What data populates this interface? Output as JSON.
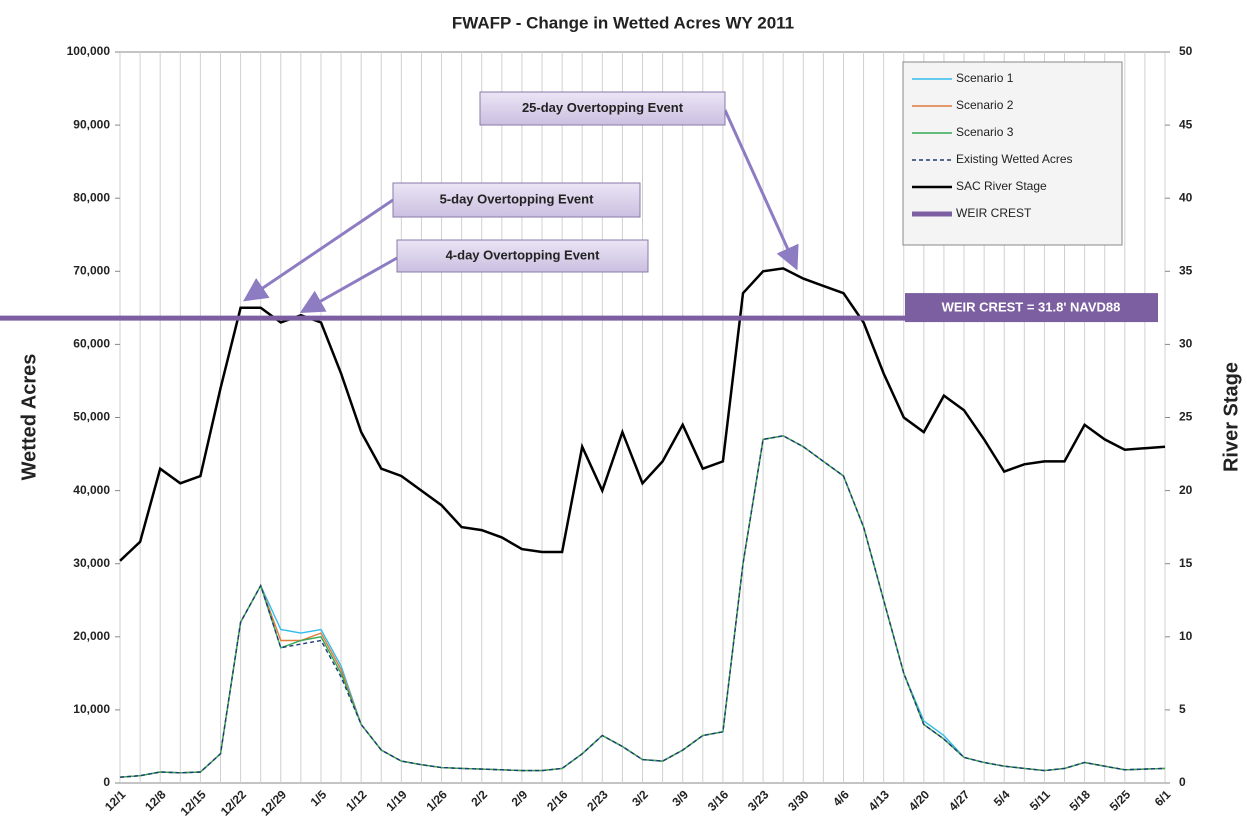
{
  "chart_data": {
    "type": "line",
    "title": "FWAFP - Change in Wetted Acres WY 2011",
    "y_label": "Wetted Acres",
    "y2_label": "River Stage",
    "categories": [
      "12/1",
      null,
      "12/8",
      null,
      "12/15",
      null,
      "12/22",
      null,
      "12/29",
      null,
      "1/5",
      null,
      "1/12",
      null,
      "1/19",
      null,
      "1/26",
      null,
      "2/2",
      null,
      "2/9",
      null,
      "2/16",
      null,
      "2/23",
      null,
      "3/2",
      null,
      "3/9",
      null,
      "3/16",
      null,
      "3/23",
      null,
      "3/30",
      null,
      "4/6",
      null,
      "4/13",
      null,
      "4/20",
      null,
      "4/27",
      null,
      "5/4",
      null,
      "5/11",
      null,
      "5/18",
      null,
      "5/25",
      null,
      "6/1"
    ],
    "series": [
      {
        "name": "Scenario 1",
        "color": "#33bbee",
        "values": [
          800,
          1000,
          1500,
          1400,
          1500,
          4000,
          22000,
          27000,
          21000,
          20500,
          21000,
          16000,
          8000,
          4500,
          3000,
          2500,
          2100,
          2000,
          1900,
          1800,
          1700,
          1700,
          2000,
          4000,
          6500,
          5000,
          3200,
          3000,
          4500,
          6500,
          7000,
          30000,
          47000,
          47500,
          46000,
          44000,
          42000,
          35000,
          25000,
          15000,
          8500,
          6500,
          3500,
          2800,
          2300,
          2000,
          1700,
          2000,
          2800,
          2300,
          1800,
          1900,
          2000
        ]
      },
      {
        "name": "Scenario 2",
        "color": "#e07b39",
        "values": [
          800,
          1000,
          1500,
          1400,
          1500,
          4000,
          22000,
          27000,
          19500,
          19500,
          20500,
          15500,
          8000,
          4500,
          3000,
          2500,
          2100,
          2000,
          1900,
          1800,
          1700,
          1700,
          2000,
          4000,
          6500,
          5000,
          3200,
          3000,
          4500,
          6500,
          7000,
          30000,
          47000,
          47500,
          46000,
          44000,
          42000,
          35000,
          25000,
          15000,
          8000,
          6000,
          3500,
          2800,
          2300,
          2000,
          1700,
          2000,
          2800,
          2300,
          1800,
          1900,
          2000
        ]
      },
      {
        "name": "Scenario 3",
        "color": "#33aa55",
        "values": [
          800,
          1000,
          1500,
          1400,
          1500,
          4000,
          22000,
          27000,
          18500,
          19500,
          20000,
          15000,
          8000,
          4500,
          3000,
          2500,
          2100,
          2000,
          1900,
          1800,
          1700,
          1700,
          2000,
          4000,
          6500,
          5000,
          3200,
          3000,
          4500,
          6500,
          7000,
          30000,
          47000,
          47500,
          46000,
          44000,
          42000,
          35000,
          25000,
          15000,
          8000,
          6000,
          3500,
          2800,
          2300,
          2000,
          1700,
          2000,
          2800,
          2300,
          1800,
          1900,
          2000
        ]
      },
      {
        "name": "Existing Wetted Acres",
        "color": "#1f3b7a",
        "dashed": true,
        "values": [
          800,
          1000,
          1500,
          1400,
          1500,
          4000,
          22000,
          27000,
          18500,
          19000,
          19500,
          14500,
          8000,
          4500,
          3000,
          2500,
          2100,
          2000,
          1900,
          1800,
          1700,
          1700,
          2000,
          4000,
          6500,
          5000,
          3200,
          3000,
          4500,
          6500,
          7000,
          30000,
          47000,
          47500,
          46000,
          44000,
          42000,
          35000,
          25000,
          15000,
          8000,
          6000,
          3500,
          2800,
          2300,
          2000,
          1700,
          2000,
          2800,
          2300,
          1800,
          1900,
          2000
        ]
      },
      {
        "name": "SAC River Stage",
        "color": "#000000",
        "axis": "y2",
        "values": [
          15.2,
          16.5,
          21.5,
          20.5,
          21,
          27,
          32.5,
          32.5,
          31.5,
          32,
          31.5,
          28,
          24,
          21.5,
          21,
          20,
          19,
          17.5,
          17.3,
          16.8,
          16,
          15.8,
          15.8,
          23,
          20,
          24,
          20.5,
          22,
          24.5,
          21.5,
          22,
          33.5,
          35,
          35.2,
          34.5,
          34,
          33.5,
          31.5,
          28,
          25,
          24,
          26.5,
          25.5,
          23.5,
          21.3,
          21.8,
          22,
          22,
          24.5,
          23.5,
          22.8,
          22.9,
          23
        ]
      }
    ],
    "reference_lines": [
      {
        "name": "WEIR CREST",
        "value": 31.8,
        "axis": "y2",
        "color": "#7b5fa0",
        "label": "WEIR CREST = 31.8' NAVD88"
      }
    ],
    "annotations": [
      "25-day Overtopping Event",
      "5-day Overtopping Event",
      "4-day Overtopping Event"
    ],
    "ylim": [
      0,
      100000
    ],
    "yticks": [
      0,
      {
        "value": 10000,
        "label": "10,000"
      },
      {
        "value": 20000,
        "label": "20,000"
      },
      {
        "value": 30000,
        "label": "30,000"
      },
      {
        "value": 40000,
        "label": "40,000"
      },
      {
        "value": 50000,
        "label": "50,000"
      },
      {
        "value": 60000,
        "label": "60,000"
      },
      {
        "value": 70000,
        "label": "70,000"
      },
      {
        "value": 80000,
        "label": "80,000"
      },
      {
        "value": 90000,
        "label": "90,000"
      },
      {
        "value": 100000,
        "label": "100,000"
      }
    ],
    "y2lim": [
      0,
      50
    ],
    "y2ticks": [
      0,
      5,
      10,
      15,
      20,
      25,
      30,
      35,
      40,
      45,
      50
    ],
    "grid": "x",
    "legend": "upper right"
  }
}
